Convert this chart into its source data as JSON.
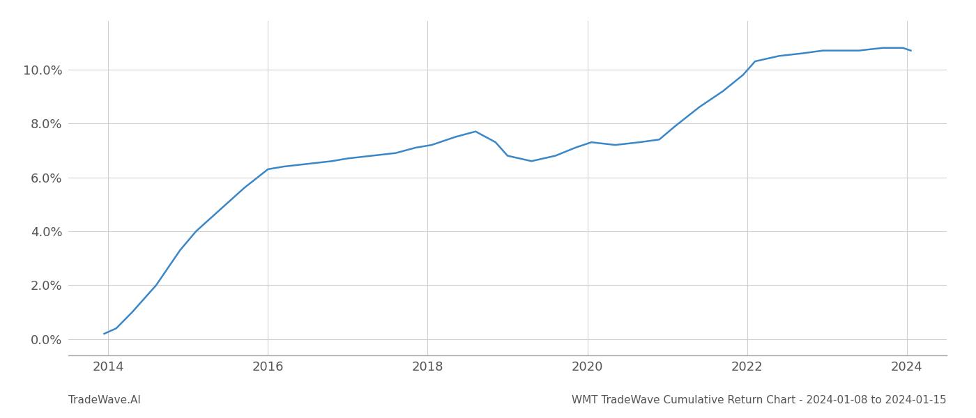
{
  "x_years": [
    2013.95,
    2014.1,
    2014.3,
    2014.6,
    2014.9,
    2015.1,
    2015.4,
    2015.7,
    2016.0,
    2016.2,
    2016.5,
    2016.8,
    2017.0,
    2017.3,
    2017.6,
    2017.85,
    2018.05,
    2018.35,
    2018.6,
    2018.85,
    2019.0,
    2019.3,
    2019.6,
    2019.85,
    2020.05,
    2020.35,
    2020.65,
    2020.9,
    2021.1,
    2021.4,
    2021.7,
    2021.95,
    2022.1,
    2022.4,
    2022.7,
    2022.95,
    2023.1,
    2023.4,
    2023.7,
    2023.95,
    2024.05
  ],
  "y_values": [
    0.002,
    0.004,
    0.01,
    0.02,
    0.033,
    0.04,
    0.048,
    0.056,
    0.063,
    0.064,
    0.065,
    0.066,
    0.067,
    0.068,
    0.069,
    0.071,
    0.072,
    0.075,
    0.077,
    0.073,
    0.068,
    0.066,
    0.068,
    0.071,
    0.073,
    0.072,
    0.073,
    0.074,
    0.079,
    0.086,
    0.092,
    0.098,
    0.103,
    0.105,
    0.106,
    0.107,
    0.107,
    0.107,
    0.108,
    0.108,
    0.107
  ],
  "line_color": "#3a87c8",
  "line_width": 1.8,
  "background_color": "#ffffff",
  "grid_color": "#d0d0d0",
  "footer_left": "TradeWave.AI",
  "footer_right": "WMT TradeWave Cumulative Return Chart - 2024-01-08 to 2024-01-15",
  "x_tick_positions": [
    2014,
    2016,
    2018,
    2020,
    2022,
    2024
  ],
  "x_tick_labels": [
    "2014",
    "2016",
    "2018",
    "2020",
    "2022",
    "2024"
  ],
  "y_ticks": [
    0.0,
    0.02,
    0.04,
    0.06,
    0.08,
    0.1
  ],
  "xlim": [
    2013.5,
    2024.5
  ],
  "ylim": [
    -0.006,
    0.118
  ]
}
